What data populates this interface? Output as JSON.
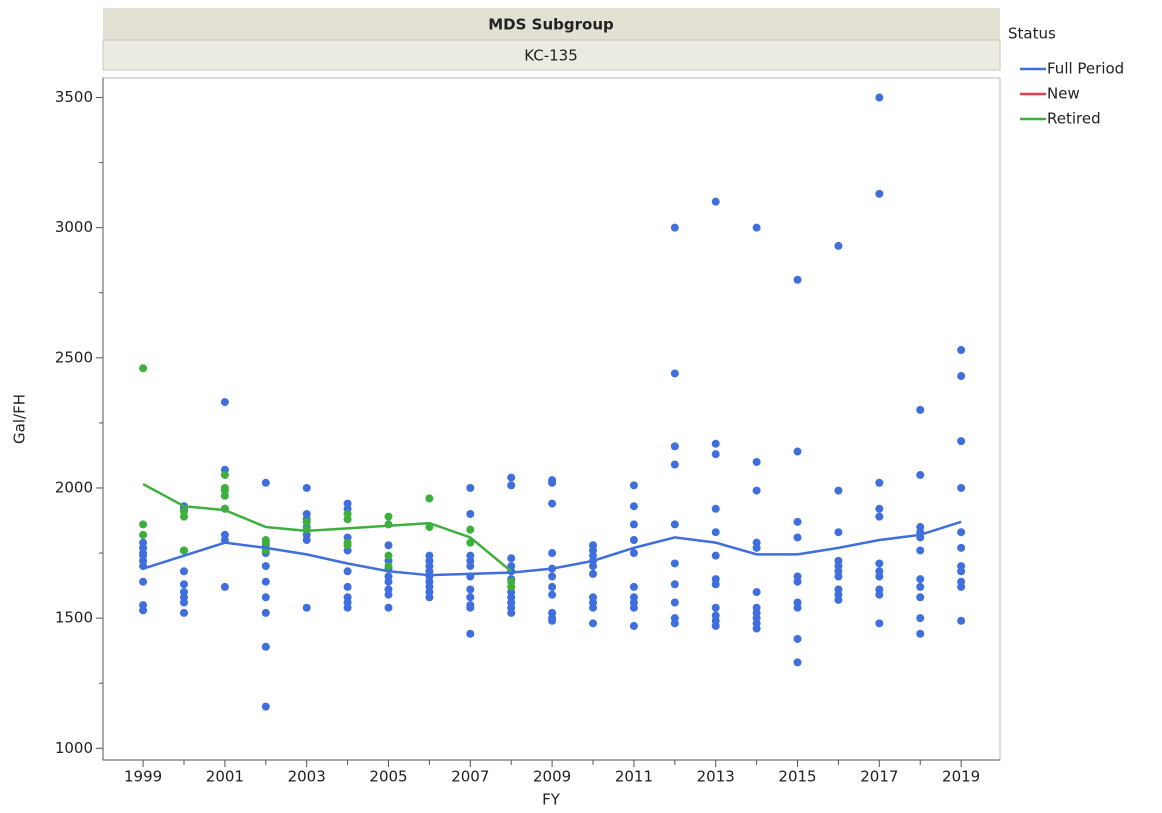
{
  "chart_data": {
    "type": "scatter",
    "group_title": "MDS Subgroup",
    "group": "KC-135",
    "x_label": "FY",
    "y_label": "Gal/FH",
    "legend_title": "Status",
    "legend_position": "right",
    "xlim": [
      1998.02,
      2019.95
    ],
    "xticks": [
      1999,
      2001,
      2003,
      2005,
      2007,
      2009,
      2011,
      2013,
      2015,
      2017,
      2019
    ],
    "xminorticks": [
      2000,
      2002,
      2004,
      2006,
      2008,
      2010,
      2012,
      2014,
      2016,
      2018
    ],
    "ylim": [
      955,
      3575
    ],
    "yticks": [
      1000,
      1500,
      2000,
      2500,
      3000,
      3500
    ],
    "yminorticks": [
      1250,
      1750,
      2250,
      2750,
      3250
    ],
    "series": [
      {
        "name": "Full Period",
        "color": "#3f6fdc",
        "x": [
          1999,
          1999,
          1999,
          1999,
          1999,
          1999,
          1999,
          1999,
          1999,
          2000,
          2000,
          2000,
          2000,
          2000,
          2000,
          2000,
          2000,
          2000,
          2001,
          2001,
          2001,
          2001,
          2001,
          2001,
          2002,
          2002,
          2002,
          2002,
          2002,
          2002,
          2002,
          2002,
          2002,
          2003,
          2003,
          2003,
          2003,
          2003,
          2003,
          2003,
          2004,
          2004,
          2004,
          2004,
          2004,
          2004,
          2004,
          2004,
          2004,
          2005,
          2005,
          2005,
          2005,
          2005,
          2005,
          2005,
          2005,
          2006,
          2006,
          2006,
          2006,
          2006,
          2006,
          2006,
          2006,
          2006,
          2007,
          2007,
          2007,
          2007,
          2007,
          2007,
          2007,
          2007,
          2007,
          2007,
          2007,
          2008,
          2008,
          2008,
          2008,
          2008,
          2008,
          2008,
          2008,
          2008,
          2008,
          2008,
          2009,
          2009,
          2009,
          2009,
          2009,
          2009,
          2009,
          2009,
          2009,
          2009,
          2009,
          2010,
          2010,
          2010,
          2010,
          2010,
          2010,
          2010,
          2010,
          2010,
          2010,
          2011,
          2011,
          2011,
          2011,
          2011,
          2011,
          2011,
          2011,
          2011,
          2011,
          2012,
          2012,
          2012,
          2012,
          2012,
          2012,
          2012,
          2012,
          2012,
          2012,
          2013,
          2013,
          2013,
          2013,
          2013,
          2013,
          2013,
          2013,
          2013,
          2013,
          2013,
          2013,
          2014,
          2014,
          2014,
          2014,
          2014,
          2014,
          2014,
          2014,
          2014,
          2014,
          2014,
          2015,
          2015,
          2015,
          2015,
          2015,
          2015,
          2015,
          2015,
          2015,
          2015,
          2016,
          2016,
          2016,
          2016,
          2016,
          2016,
          2016,
          2016,
          2016,
          2016,
          2017,
          2017,
          2017,
          2017,
          2017,
          2017,
          2017,
          2017,
          2017,
          2017,
          2017,
          2018,
          2018,
          2018,
          2018,
          2018,
          2018,
          2018,
          2018,
          2018,
          2018,
          2018,
          2019,
          2019,
          2019,
          2019,
          2019,
          2019,
          2019,
          2019,
          2019,
          2019,
          2019
        ],
        "values": [
          1790,
          1770,
          1750,
          1740,
          1720,
          1700,
          1640,
          1550,
          1530,
          1930,
          1920,
          1760,
          1680,
          1630,
          1600,
          1580,
          1560,
          1520,
          2330,
          2070,
          1920,
          1820,
          1800,
          1620,
          2020,
          1780,
          1750,
          1700,
          1640,
          1580,
          1520,
          1390,
          1160,
          2000,
          1900,
          1880,
          1850,
          1820,
          1800,
          1540,
          1940,
          1920,
          1810,
          1760,
          1680,
          1620,
          1580,
          1560,
          1540,
          1780,
          1720,
          1690,
          1660,
          1640,
          1610,
          1590,
          1540,
          1740,
          1720,
          1700,
          1680,
          1660,
          1640,
          1620,
          1600,
          1580,
          2000,
          1900,
          1740,
          1720,
          1700,
          1660,
          1610,
          1580,
          1550,
          1540,
          1440,
          2040,
          2010,
          1730,
          1700,
          1680,
          1650,
          1600,
          1580,
          1560,
          1540,
          1520,
          2030,
          2020,
          1940,
          1750,
          1690,
          1660,
          1620,
          1590,
          1520,
          1500,
          1490,
          1780,
          1760,
          1740,
          1720,
          1700,
          1670,
          1580,
          1560,
          1540,
          1480,
          2010,
          1930,
          1860,
          1800,
          1750,
          1620,
          1580,
          1560,
          1540,
          1470,
          3000,
          2440,
          2160,
          2090,
          1860,
          1710,
          1630,
          1560,
          1500,
          1480,
          3100,
          2170,
          2130,
          1920,
          1830,
          1740,
          1650,
          1630,
          1540,
          1510,
          1490,
          1470,
          3000,
          2100,
          1990,
          1790,
          1770,
          1600,
          1540,
          1520,
          1500,
          1480,
          1460,
          2800,
          2140,
          1870,
          1810,
          1660,
          1640,
          1560,
          1540,
          1420,
          1330,
          2930,
          1990,
          1830,
          1720,
          1700,
          1680,
          1660,
          1610,
          1590,
          1570,
          3500,
          3130,
          2020,
          1920,
          1890,
          1710,
          1680,
          1660,
          1610,
          1590,
          1480,
          2300,
          2050,
          1850,
          1830,
          1810,
          1760,
          1650,
          1620,
          1580,
          1500,
          1440,
          2530,
          2430,
          2180,
          2000,
          1830,
          1770,
          1700,
          1680,
          1640,
          1620,
          1490
        ],
        "smooth_x": [
          1999,
          2000,
          2001,
          2002,
          2003,
          2004,
          2005,
          2006,
          2007,
          2008,
          2009,
          2010,
          2011,
          2012,
          2013,
          2014,
          2015,
          2016,
          2017,
          2018,
          2019
        ],
        "smooth_values": [
          1690,
          1740,
          1790,
          1770,
          1745,
          1710,
          1680,
          1665,
          1670,
          1675,
          1690,
          1720,
          1770,
          1810,
          1790,
          1745,
          1745,
          1770,
          1800,
          1820,
          1870
        ]
      },
      {
        "name": "New",
        "color": "#e0404a",
        "x": [],
        "values": [],
        "smooth_x": [],
        "smooth_values": []
      },
      {
        "name": "Retired",
        "color": "#3daf3d",
        "x": [
          1999,
          1999,
          1999,
          2000,
          2000,
          2000,
          2001,
          2001,
          2001,
          2001,
          2001,
          2002,
          2002,
          2002,
          2003,
          2003,
          2004,
          2004,
          2004,
          2004,
          2005,
          2005,
          2005,
          2005,
          2006,
          2006,
          2007,
          2007,
          2008,
          2008
        ],
        "values": [
          2460,
          1860,
          1820,
          1910,
          1890,
          1760,
          2050,
          2000,
          1990,
          1970,
          1920,
          1800,
          1790,
          1760,
          1870,
          1840,
          1900,
          1880,
          1790,
          1780,
          1890,
          1860,
          1740,
          1700,
          1960,
          1850,
          1840,
          1790,
          1640,
          1620
        ],
        "smooth_x": [
          1999,
          2000,
          2001,
          2002,
          2003,
          2004,
          2005,
          2006,
          2007,
          2008
        ],
        "smooth_values": [
          2015,
          1930,
          1915,
          1850,
          1835,
          1845,
          1855,
          1865,
          1810,
          1680
        ]
      }
    ]
  }
}
